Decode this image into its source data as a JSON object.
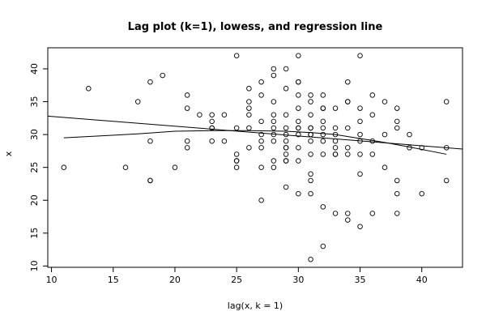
{
  "chart_data": {
    "type": "scatter",
    "title": "Lag plot (k=1), lowess, and regression line",
    "xlabel": "lag(x, k = 1)",
    "ylabel": "x",
    "xlim": [
      9.7,
      43.3
    ],
    "ylim": [
      9.8,
      43.2
    ],
    "x_ticks": [
      10,
      15,
      20,
      25,
      30,
      35,
      40
    ],
    "y_ticks": [
      10,
      15,
      20,
      25,
      30,
      35,
      40
    ],
    "points": [
      [
        11,
        25
      ],
      [
        13,
        37
      ],
      [
        16,
        25
      ],
      [
        17,
        35
      ],
      [
        18,
        38
      ],
      [
        18,
        29
      ],
      [
        18,
        23
      ],
      [
        18,
        23
      ],
      [
        19,
        39
      ],
      [
        20,
        25
      ],
      [
        21,
        36
      ],
      [
        21,
        34
      ],
      [
        21,
        29
      ],
      [
        21,
        28
      ],
      [
        22,
        33
      ],
      [
        23,
        33
      ],
      [
        23,
        32
      ],
      [
        23,
        31
      ],
      [
        23,
        31
      ],
      [
        23,
        29
      ],
      [
        24,
        33
      ],
      [
        24,
        29
      ],
      [
        25,
        42
      ],
      [
        25,
        31
      ],
      [
        25,
        27
      ],
      [
        25,
        26
      ],
      [
        25,
        26
      ],
      [
        25,
        25
      ],
      [
        26,
        37
      ],
      [
        26,
        35
      ],
      [
        26,
        34
      ],
      [
        26,
        33
      ],
      [
        26,
        31
      ],
      [
        26,
        28
      ],
      [
        27,
        38
      ],
      [
        27,
        36
      ],
      [
        27,
        32
      ],
      [
        27,
        30
      ],
      [
        27,
        29
      ],
      [
        27,
        28
      ],
      [
        27,
        25
      ],
      [
        27,
        20
      ],
      [
        28,
        40
      ],
      [
        28,
        39
      ],
      [
        28,
        35
      ],
      [
        28,
        33
      ],
      [
        28,
        32
      ],
      [
        28,
        31
      ],
      [
        28,
        30
      ],
      [
        28,
        29
      ],
      [
        28,
        26
      ],
      [
        28,
        25
      ],
      [
        29,
        40
      ],
      [
        29,
        37
      ],
      [
        29,
        33
      ],
      [
        29,
        31
      ],
      [
        29,
        30
      ],
      [
        29,
        29
      ],
      [
        29,
        28
      ],
      [
        29,
        28
      ],
      [
        29,
        27
      ],
      [
        29,
        26
      ],
      [
        29,
        26
      ],
      [
        29,
        22
      ],
      [
        30,
        42
      ],
      [
        30,
        38
      ],
      [
        30,
        38
      ],
      [
        30,
        36
      ],
      [
        30,
        34
      ],
      [
        30,
        32
      ],
      [
        30,
        31
      ],
      [
        30,
        31
      ],
      [
        30,
        30
      ],
      [
        30,
        28
      ],
      [
        30,
        26
      ],
      [
        30,
        21
      ],
      [
        31,
        36
      ],
      [
        31,
        35
      ],
      [
        31,
        33
      ],
      [
        31,
        31
      ],
      [
        31,
        31
      ],
      [
        31,
        30
      ],
      [
        31,
        30
      ],
      [
        31,
        29
      ],
      [
        31,
        27
      ],
      [
        31,
        24
      ],
      [
        31,
        23
      ],
      [
        31,
        21
      ],
      [
        31,
        11
      ],
      [
        32,
        36
      ],
      [
        32,
        34
      ],
      [
        32,
        34
      ],
      [
        32,
        32
      ],
      [
        32,
        31
      ],
      [
        32,
        30
      ],
      [
        32,
        29
      ],
      [
        32,
        27
      ],
      [
        32,
        19
      ],
      [
        32,
        13
      ],
      [
        33,
        34
      ],
      [
        33,
        31
      ],
      [
        33,
        30
      ],
      [
        33,
        29
      ],
      [
        33,
        28
      ],
      [
        33,
        27
      ],
      [
        33,
        27
      ],
      [
        33,
        18
      ],
      [
        34,
        38
      ],
      [
        34,
        35
      ],
      [
        34,
        35
      ],
      [
        34,
        31
      ],
      [
        34,
        28
      ],
      [
        34,
        27
      ],
      [
        34,
        18
      ],
      [
        34,
        17
      ],
      [
        35,
        42
      ],
      [
        35,
        34
      ],
      [
        35,
        32
      ],
      [
        35,
        30
      ],
      [
        35,
        29
      ],
      [
        35,
        27
      ],
      [
        35,
        24
      ],
      [
        35,
        16
      ],
      [
        36,
        36
      ],
      [
        36,
        33
      ],
      [
        36,
        29
      ],
      [
        36,
        27
      ],
      [
        36,
        18
      ],
      [
        37,
        35
      ],
      [
        37,
        30
      ],
      [
        37,
        25
      ],
      [
        38,
        34
      ],
      [
        38,
        32
      ],
      [
        38,
        31
      ],
      [
        38,
        23
      ],
      [
        38,
        21
      ],
      [
        38,
        18
      ],
      [
        39,
        30
      ],
      [
        39,
        28
      ],
      [
        40,
        28
      ],
      [
        40,
        21
      ],
      [
        42,
        35
      ],
      [
        42,
        28
      ],
      [
        42,
        23
      ]
    ],
    "regression_line": [
      [
        9.7,
        32.8
      ],
      [
        43.3,
        27.8
      ]
    ],
    "lowess_line": [
      [
        11,
        29.5
      ],
      [
        14,
        29.8
      ],
      [
        17,
        30.1
      ],
      [
        20,
        30.5
      ],
      [
        23,
        30.6
      ],
      [
        26,
        30.6
      ],
      [
        29,
        30.5
      ],
      [
        31,
        30.3
      ],
      [
        33,
        30.0
      ],
      [
        35,
        29.4
      ],
      [
        37,
        28.8
      ],
      [
        39,
        28.1
      ],
      [
        42,
        27.0
      ]
    ]
  }
}
